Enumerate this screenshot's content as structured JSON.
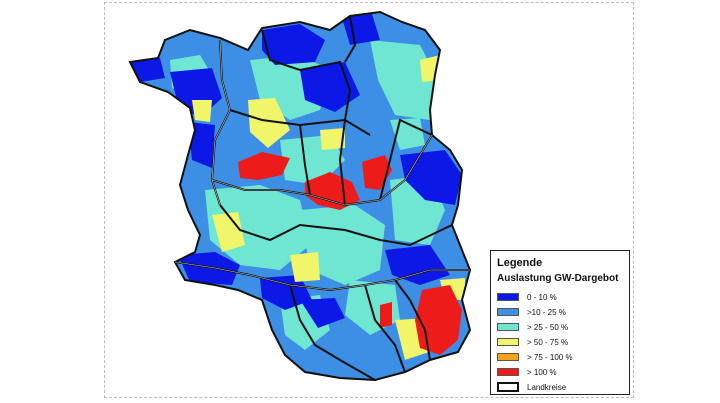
{
  "legend": {
    "title": "Legende",
    "subtitle": "Auslastung GW-Dargebot",
    "items": [
      {
        "label": "0 - 10 %",
        "color": "#0b18e6"
      },
      {
        "label": ">10 - 25 %",
        "color": "#3d8fe6"
      },
      {
        "label": "> 25 - 50 %",
        "color": "#6fe6d2"
      },
      {
        "label": "> 50 - 75 %",
        "color": "#f0f56a"
      },
      {
        "label": "> 75 - 100 %",
        "color": "#f5a21a"
      },
      {
        "label": "> 100 %",
        "color": "#ee1b1b"
      }
    ],
    "boundary_label": "Landkreise"
  }
}
